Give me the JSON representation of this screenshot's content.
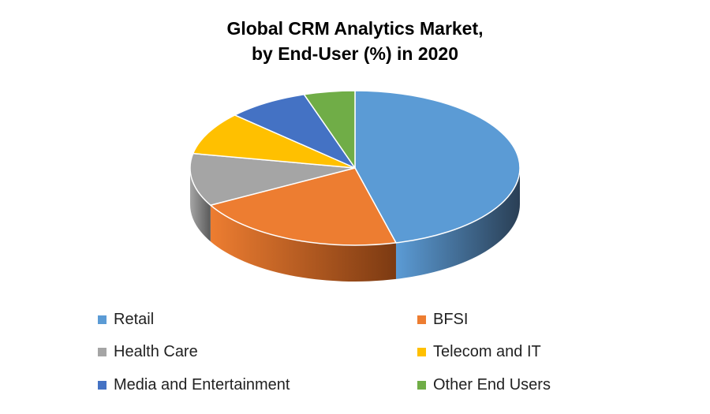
{
  "chart_data": {
    "type": "pie",
    "title": [
      "Global CRM Analytics Market,",
      "by End-User (%) in 2020"
    ],
    "categories": [
      "Retail",
      "BFSI",
      "Health Care",
      "Telecom and IT",
      "Media and Entertainment",
      "Other End Users"
    ],
    "values": [
      46,
      21,
      11,
      9,
      8,
      5
    ],
    "colors": [
      "#5b9bd5",
      "#ed7d31",
      "#a5a5a5",
      "#ffc000",
      "#4472c4",
      "#70ad47"
    ],
    "dark_colors": [
      "#2a3f55",
      "#7c3a12",
      "#5a5a5a",
      "#8a6800",
      "#223a70",
      "#3a6324"
    ],
    "legend_position": "bottom",
    "style": "3d"
  }
}
